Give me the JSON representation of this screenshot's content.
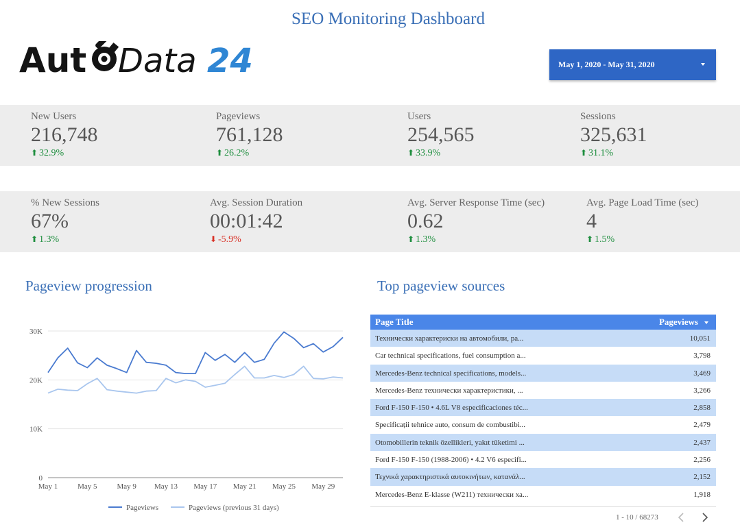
{
  "header": {
    "title": "SEO Monitoring Dashboard",
    "logo_text": "AutoData24",
    "date_range": "May 1, 2020 - May 31, 2020"
  },
  "kpis_row1": [
    {
      "label": "New Users",
      "value": "216,748",
      "change": "32.9%",
      "direction": "up"
    },
    {
      "label": "Pageviews",
      "value": "761,128",
      "change": "26.2%",
      "direction": "up"
    },
    {
      "label": "Users",
      "value": "254,565",
      "change": "33.9%",
      "direction": "up"
    },
    {
      "label": "Sessions",
      "value": "325,631",
      "change": "31.1%",
      "direction": "up"
    }
  ],
  "kpis_row2": [
    {
      "label": "% New Sessions",
      "value": "67%",
      "change": "1.3%",
      "direction": "up"
    },
    {
      "label": "Avg. Session Duration",
      "value": "00:01:42",
      "change": "-5.9%",
      "direction": "down"
    },
    {
      "label": "Avg. Server Response Time (sec)",
      "value": "0.62",
      "change": "1.3%",
      "direction": "up"
    },
    {
      "label": "Avg. Page Load Time (sec)",
      "value": "4",
      "change": "1.5%",
      "direction": "up"
    }
  ],
  "chart": {
    "title": "Pageview progression",
    "legend_current": "Pageviews",
    "legend_previous": "Pageviews (previous 31 days)"
  },
  "chart_data": {
    "type": "line",
    "x": [
      1,
      2,
      3,
      4,
      5,
      6,
      7,
      8,
      9,
      10,
      11,
      12,
      13,
      14,
      15,
      16,
      17,
      18,
      19,
      20,
      21,
      22,
      23,
      24,
      25,
      26,
      27,
      28,
      29,
      30,
      31
    ],
    "x_tick_labels": [
      "May 1",
      "May 5",
      "May 9",
      "May 13",
      "May 17",
      "May 21",
      "May 25",
      "May 29"
    ],
    "x_tick_positions": [
      1,
      5,
      9,
      13,
      17,
      21,
      25,
      29
    ],
    "y_tick_labels": [
      "0",
      "10K",
      "20K",
      "30K"
    ],
    "y_ticks": [
      0,
      10000,
      20000,
      30000
    ],
    "ylim": [
      0,
      30000
    ],
    "grid": true,
    "legend_position": "bottom",
    "series": [
      {
        "name": "Pageviews",
        "color": "#4a7bd0",
        "values": [
          21500,
          24500,
          26500,
          23500,
          22500,
          24500,
          23000,
          22300,
          21500,
          26000,
          23600,
          23400,
          23000,
          21500,
          21300,
          21300,
          25600,
          24000,
          25200,
          23600,
          25600,
          23600,
          24200,
          27500,
          29800,
          28500,
          26600,
          27400,
          25700,
          26800,
          28700
        ]
      },
      {
        "name": "Pageviews (previous 31 days)",
        "color": "#a9c6ee",
        "values": [
          17300,
          18100,
          17900,
          17800,
          19200,
          20300,
          18000,
          17700,
          17500,
          17300,
          17700,
          17800,
          20300,
          19400,
          20000,
          19700,
          18500,
          18900,
          19300,
          21100,
          22800,
          20400,
          20400,
          20900,
          20500,
          21100,
          22800,
          20300,
          20200,
          20600,
          20400
        ]
      }
    ]
  },
  "table": {
    "title": "Top pageview sources",
    "col1": "Page Title",
    "col2": "Pageviews",
    "rows": [
      {
        "title": "Технически характериски на автомобили, ра...",
        "views": "10,051"
      },
      {
        "title": "Car technical specifications, fuel consumption a...",
        "views": "3,798"
      },
      {
        "title": "Mercedes-Benz technical specifications, models...",
        "views": "3,469"
      },
      {
        "title": "Mercedes-Benz технически характеристики, ...",
        "views": "3,266"
      },
      {
        "title": "Ford F-150 F-150 • 4.6L V8 especificaciones téc...",
        "views": "2,858"
      },
      {
        "title": "Specificații tehnice auto, consum de combustibi...",
        "views": "2,479"
      },
      {
        "title": "Otomobillerin teknik özellikleri, yakıt tüketimi ...",
        "views": "2,437"
      },
      {
        "title": "Ford F-150 F-150 (1988-2006) • 4.2 V6 especifi...",
        "views": "2,256"
      },
      {
        "title": "Τεχνικά χαρακτηριστικά αυτοκινήτων, κατανάλ...",
        "views": "2,152"
      },
      {
        "title": "Mercedes-Benz E-klasse (W211) технически ха...",
        "views": "1,918"
      }
    ],
    "pagination": "1 - 10 / 68273"
  },
  "colors": {
    "accent": "#2e66c5",
    "title_blue": "#3a6fb6",
    "table_header": "#4a86e8",
    "row_alt": "#c6dcf7",
    "up": "#1e8e3e",
    "down": "#d93025"
  }
}
